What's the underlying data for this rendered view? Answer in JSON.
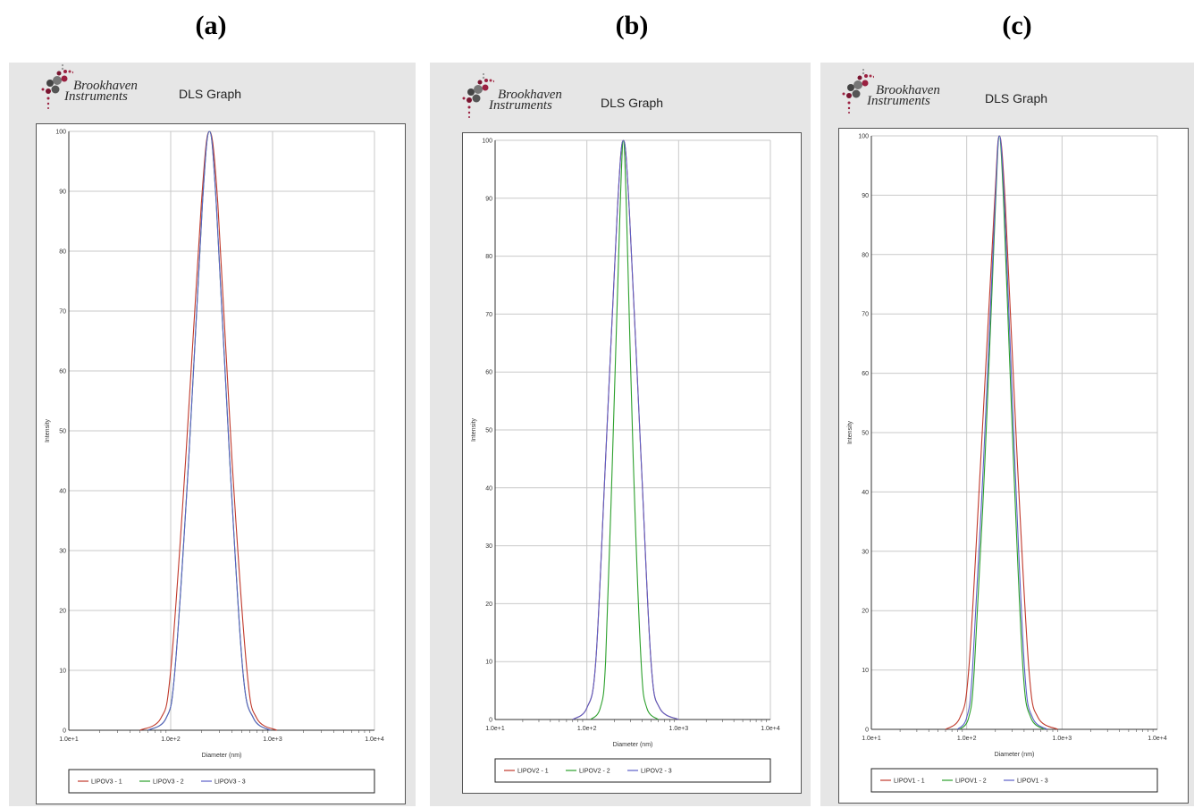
{
  "panels": [
    {
      "label": "(a)",
      "brand_line1": "Brookhaven",
      "brand_line2": "Instruments",
      "graph_title": "DLS Graph"
    },
    {
      "label": "(b)",
      "brand_line1": "Brookhaven",
      "brand_line2": "Instruments",
      "graph_title": "DLS Graph"
    },
    {
      "label": "(c)",
      "brand_line1": "Brookhaven",
      "brand_line2": "Instruments",
      "graph_title": "DLS Graph"
    }
  ],
  "chart_data": [
    {
      "type": "line",
      "title": "DLS Graph",
      "xlabel": "Diameter (nm)",
      "ylabel": "Intensity",
      "x_scale": "log",
      "xlim": [
        10,
        10000
      ],
      "ylim": [
        0,
        100
      ],
      "x_ticks": [
        "1.0e+1",
        "1.0e+2",
        "1.0e+3",
        "1.0e+4"
      ],
      "y_ticks": [
        0,
        10,
        20,
        30,
        40,
        50,
        60,
        70,
        80,
        90,
        100
      ],
      "grid": true,
      "legend_position": "bottom",
      "series": [
        {
          "name": "LIPOV3 - 1",
          "color": "#c0392b",
          "peak_x": 240,
          "peak_y": 100,
          "points": [
            [
              50,
              0
            ],
            [
              80,
              2
            ],
            [
              100,
              10
            ],
            [
              140,
              45
            ],
            [
              200,
              88
            ],
            [
              240,
              100
            ],
            [
              290,
              88
            ],
            [
              400,
              45
            ],
            [
              560,
              10
            ],
            [
              700,
              2
            ],
            [
              1100,
              0
            ]
          ]
        },
        {
          "name": "LIPOV3 - 2",
          "color": "#2ca02c",
          "peak_x": 240,
          "peak_y": 100,
          "points": [
            [
              60,
              0
            ],
            [
              90,
              2
            ],
            [
              110,
              10
            ],
            [
              150,
              45
            ],
            [
              205,
              88
            ],
            [
              240,
              100
            ],
            [
              280,
              88
            ],
            [
              380,
              45
            ],
            [
              510,
              10
            ],
            [
              650,
              2
            ],
            [
              950,
              0
            ]
          ]
        },
        {
          "name": "LIPOV3 - 3",
          "color": "#5b5fc7",
          "peak_x": 240,
          "peak_y": 100,
          "points": [
            [
              60,
              0
            ],
            [
              90,
              2
            ],
            [
              110,
              10
            ],
            [
              150,
              45
            ],
            [
              205,
              88
            ],
            [
              240,
              100
            ],
            [
              280,
              88
            ],
            [
              380,
              45
            ],
            [
              510,
              10
            ],
            [
              650,
              2
            ],
            [
              950,
              0
            ]
          ]
        }
      ]
    },
    {
      "type": "line",
      "title": "DLS Graph",
      "xlabel": "Diameter (nm)",
      "ylabel": "Intensity",
      "x_scale": "log",
      "xlim": [
        10,
        10000
      ],
      "ylim": [
        0,
        100
      ],
      "x_ticks": [
        "1.0e+1",
        "1.0e+2",
        "1.0e+3",
        "1.0e+4"
      ],
      "y_ticks": [
        0,
        10,
        20,
        30,
        40,
        50,
        60,
        70,
        80,
        90,
        100
      ],
      "grid": true,
      "legend_position": "bottom",
      "series": [
        {
          "name": "LIPOV2 - 1",
          "color": "#c0392b",
          "peak_x": 250,
          "peak_y": 100,
          "points": [
            [
              70,
              0
            ],
            [
              100,
              2
            ],
            [
              125,
              10
            ],
            [
              160,
              45
            ],
            [
              215,
              88
            ],
            [
              250,
              100
            ],
            [
              290,
              88
            ],
            [
              390,
              45
            ],
            [
              500,
              10
            ],
            [
              620,
              2
            ],
            [
              1000,
              0
            ]
          ]
        },
        {
          "name": "LIPOV2 - 2",
          "color": "#2ca02c",
          "peak_x": 250,
          "peak_y": 100,
          "points": [
            [
              110,
              0
            ],
            [
              140,
              2
            ],
            [
              160,
              10
            ],
            [
              190,
              45
            ],
            [
              230,
              88
            ],
            [
              250,
              100
            ],
            [
              270,
              88
            ],
            [
              320,
              45
            ],
            [
              390,
              10
            ],
            [
              450,
              2
            ],
            [
              600,
              0
            ]
          ]
        },
        {
          "name": "LIPOV2 - 3",
          "color": "#5b5fc7",
          "peak_x": 250,
          "peak_y": 100,
          "points": [
            [
              70,
              0
            ],
            [
              100,
              2
            ],
            [
              125,
              10
            ],
            [
              160,
              45
            ],
            [
              215,
              88
            ],
            [
              250,
              100
            ],
            [
              290,
              88
            ],
            [
              390,
              45
            ],
            [
              500,
              10
            ],
            [
              620,
              2
            ],
            [
              1000,
              0
            ]
          ]
        }
      ]
    },
    {
      "type": "line",
      "title": "DLS Graph",
      "xlabel": "Diameter (nm)",
      "ylabel": "Intensity",
      "x_scale": "log",
      "xlim": [
        10,
        10000
      ],
      "ylim": [
        0,
        100
      ],
      "x_ticks": [
        "1.0e+1",
        "1.0e+2",
        "1.0e+3",
        "1.0e+4"
      ],
      "y_ticks": [
        0,
        10,
        20,
        30,
        40,
        50,
        60,
        70,
        80,
        90,
        100
      ],
      "grid": true,
      "legend_position": "bottom",
      "series": [
        {
          "name": "LIPOV1 - 1",
          "color": "#c0392b",
          "peak_x": 220,
          "peak_y": 100,
          "points": [
            [
              60,
              0
            ],
            [
              85,
              2
            ],
            [
              105,
              10
            ],
            [
              140,
              45
            ],
            [
              195,
              88
            ],
            [
              220,
              100
            ],
            [
              255,
              88
            ],
            [
              340,
              45
            ],
            [
              450,
              10
            ],
            [
              560,
              2
            ],
            [
              900,
              0
            ]
          ]
        },
        {
          "name": "LIPOV1 - 2",
          "color": "#2ca02c",
          "peak_x": 220,
          "peak_y": 100,
          "points": [
            [
              85,
              0
            ],
            [
              105,
              2
            ],
            [
              120,
              10
            ],
            [
              155,
              45
            ],
            [
              200,
              88
            ],
            [
              220,
              100
            ],
            [
              245,
              88
            ],
            [
              310,
              45
            ],
            [
              390,
              10
            ],
            [
              470,
              2
            ],
            [
              650,
              0
            ]
          ]
        },
        {
          "name": "LIPOV1 - 3",
          "color": "#5b5fc7",
          "peak_x": 220,
          "peak_y": 100,
          "points": [
            [
              80,
              0
            ],
            [
              100,
              2
            ],
            [
              115,
              10
            ],
            [
              150,
              45
            ],
            [
              198,
              88
            ],
            [
              220,
              100
            ],
            [
              250,
              88
            ],
            [
              320,
              45
            ],
            [
              405,
              10
            ],
            [
              490,
              2
            ],
            [
              700,
              0
            ]
          ]
        }
      ]
    }
  ]
}
